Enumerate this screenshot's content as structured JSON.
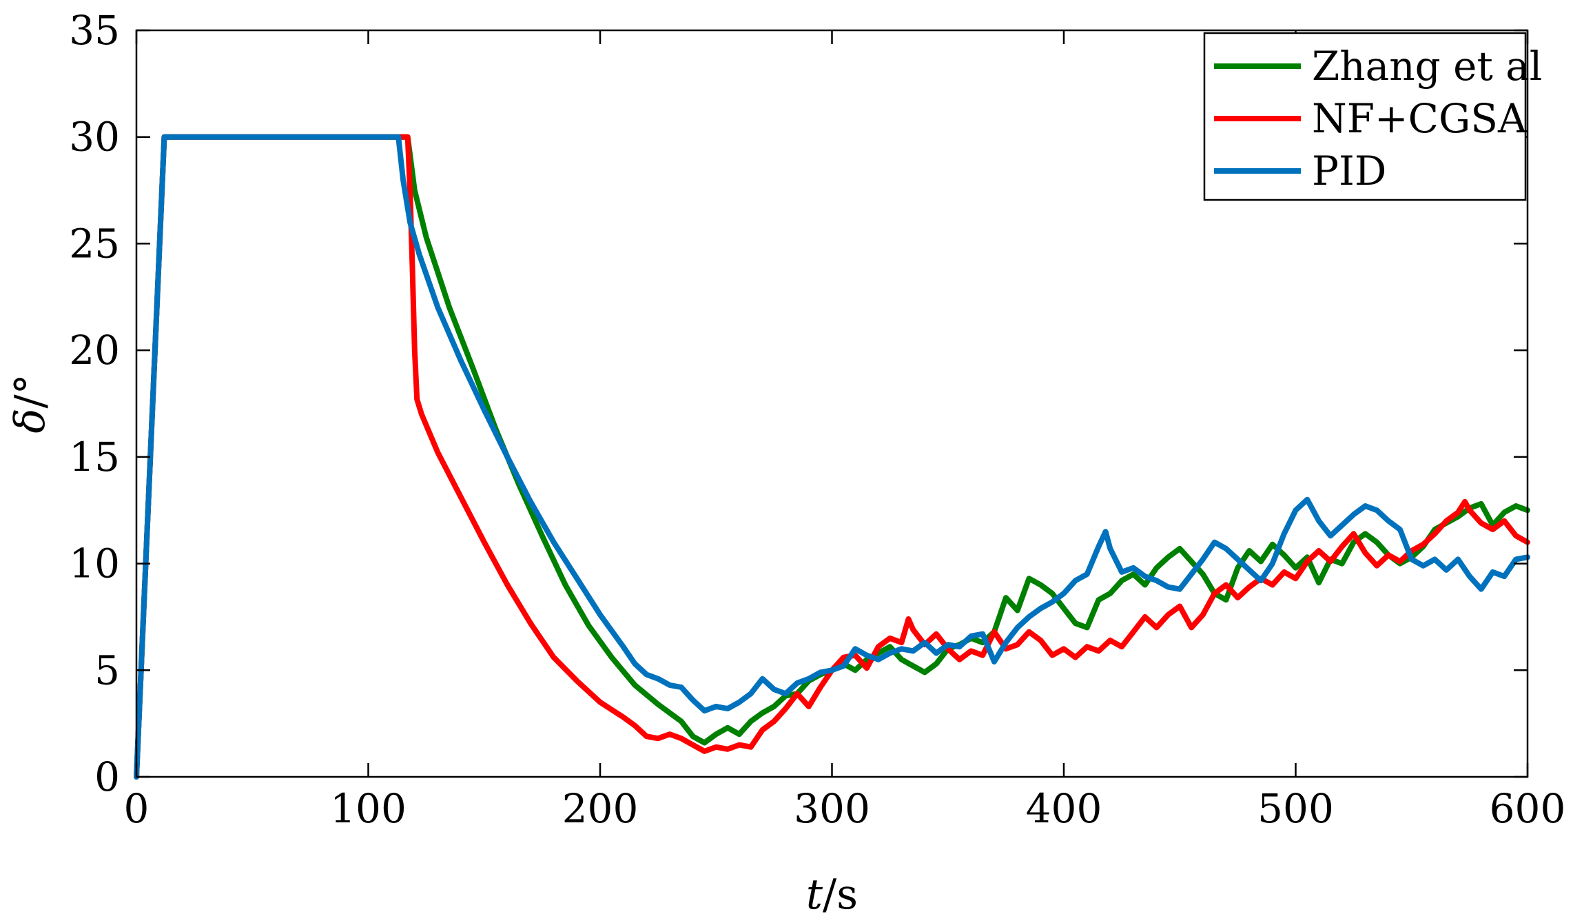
{
  "chart_data": {
    "type": "line",
    "title": "",
    "xlabel_var": "t",
    "xlabel_unit": "/s",
    "ylabel_var": "δ",
    "ylabel_unit": "/°",
    "xlim": [
      0,
      600
    ],
    "ylim": [
      0,
      35
    ],
    "xticks": [
      "0",
      "100",
      "200",
      "300",
      "400",
      "500",
      "600"
    ],
    "yticks": [
      "0",
      "5",
      "10",
      "15",
      "20",
      "25",
      "30",
      "35"
    ],
    "grid": false,
    "legend_position": "top-right",
    "series": [
      {
        "name": "Zhang et al",
        "color": "#008000",
        "points": [
          [
            0,
            0
          ],
          [
            12,
            30
          ],
          [
            117,
            30
          ],
          [
            120,
            27.5
          ],
          [
            125,
            25.3
          ],
          [
            135,
            22
          ],
          [
            145,
            19.2
          ],
          [
            155,
            16.3
          ],
          [
            165,
            13.7
          ],
          [
            175,
            11.3
          ],
          [
            185,
            9.0
          ],
          [
            195,
            7.1
          ],
          [
            205,
            5.6
          ],
          [
            215,
            4.3
          ],
          [
            225,
            3.4
          ],
          [
            235,
            2.6
          ],
          [
            240,
            1.9
          ],
          [
            245,
            1.6
          ],
          [
            250,
            2.0
          ],
          [
            255,
            2.3
          ],
          [
            260,
            2.0
          ],
          [
            265,
            2.6
          ],
          [
            270,
            3.0
          ],
          [
            275,
            3.3
          ],
          [
            280,
            3.8
          ],
          [
            285,
            3.9
          ],
          [
            290,
            4.5
          ],
          [
            295,
            4.8
          ],
          [
            300,
            5.0
          ],
          [
            305,
            5.3
          ],
          [
            310,
            5.0
          ],
          [
            315,
            5.5
          ],
          [
            320,
            5.8
          ],
          [
            325,
            6.1
          ],
          [
            330,
            5.5
          ],
          [
            335,
            5.2
          ],
          [
            340,
            4.9
          ],
          [
            345,
            5.3
          ],
          [
            350,
            6.0
          ],
          [
            355,
            6.2
          ],
          [
            360,
            6.5
          ],
          [
            365,
            6.3
          ],
          [
            370,
            6.8
          ],
          [
            375,
            8.4
          ],
          [
            380,
            7.8
          ],
          [
            385,
            9.3
          ],
          [
            390,
            9.0
          ],
          [
            395,
            8.6
          ],
          [
            400,
            7.9
          ],
          [
            405,
            7.2
          ],
          [
            410,
            7.0
          ],
          [
            415,
            8.3
          ],
          [
            420,
            8.6
          ],
          [
            425,
            9.2
          ],
          [
            430,
            9.5
          ],
          [
            435,
            9.0
          ],
          [
            440,
            9.8
          ],
          [
            445,
            10.3
          ],
          [
            450,
            10.7
          ],
          [
            455,
            10.1
          ],
          [
            460,
            9.5
          ],
          [
            465,
            8.6
          ],
          [
            470,
            8.3
          ],
          [
            475,
            9.8
          ],
          [
            480,
            10.6
          ],
          [
            485,
            10.1
          ],
          [
            490,
            10.9
          ],
          [
            495,
            10.4
          ],
          [
            500,
            9.8
          ],
          [
            505,
            10.3
          ],
          [
            510,
            9.1
          ],
          [
            515,
            10.2
          ],
          [
            520,
            10.0
          ],
          [
            525,
            11.0
          ],
          [
            530,
            11.4
          ],
          [
            535,
            11.0
          ],
          [
            540,
            10.4
          ],
          [
            545,
            10.0
          ],
          [
            550,
            10.3
          ],
          [
            555,
            10.8
          ],
          [
            560,
            11.6
          ],
          [
            565,
            11.9
          ],
          [
            570,
            12.2
          ],
          [
            575,
            12.6
          ],
          [
            580,
            12.8
          ],
          [
            585,
            11.8
          ],
          [
            590,
            12.4
          ],
          [
            595,
            12.7
          ],
          [
            600,
            12.5
          ]
        ]
      },
      {
        "name": "NF+CGSA",
        "color": "#ff0000",
        "points": [
          [
            0,
            0
          ],
          [
            12,
            30
          ],
          [
            117,
            30
          ],
          [
            118,
            27.5
          ],
          [
            119,
            24
          ],
          [
            120,
            20
          ],
          [
            121,
            17.7
          ],
          [
            123,
            17.0
          ],
          [
            130,
            15.2
          ],
          [
            140,
            13.1
          ],
          [
            150,
            11.0
          ],
          [
            160,
            9.0
          ],
          [
            170,
            7.2
          ],
          [
            180,
            5.6
          ],
          [
            190,
            4.5
          ],
          [
            200,
            3.5
          ],
          [
            210,
            2.8
          ],
          [
            215,
            2.4
          ],
          [
            220,
            1.9
          ],
          [
            225,
            1.8
          ],
          [
            230,
            2.0
          ],
          [
            235,
            1.8
          ],
          [
            240,
            1.5
          ],
          [
            245,
            1.2
          ],
          [
            250,
            1.4
          ],
          [
            255,
            1.3
          ],
          [
            260,
            1.5
          ],
          [
            265,
            1.4
          ],
          [
            270,
            2.2
          ],
          [
            275,
            2.6
          ],
          [
            280,
            3.2
          ],
          [
            285,
            3.9
          ],
          [
            290,
            3.3
          ],
          [
            295,
            4.2
          ],
          [
            300,
            5.0
          ],
          [
            305,
            5.6
          ],
          [
            310,
            5.7
          ],
          [
            315,
            5.1
          ],
          [
            320,
            6.1
          ],
          [
            325,
            6.5
          ],
          [
            330,
            6.3
          ],
          [
            333,
            7.4
          ],
          [
            335,
            6.9
          ],
          [
            340,
            6.2
          ],
          [
            345,
            6.7
          ],
          [
            350,
            6.0
          ],
          [
            355,
            5.5
          ],
          [
            360,
            5.9
          ],
          [
            365,
            5.7
          ],
          [
            370,
            6.8
          ],
          [
            375,
            6.0
          ],
          [
            380,
            6.2
          ],
          [
            385,
            6.8
          ],
          [
            390,
            6.4
          ],
          [
            395,
            5.7
          ],
          [
            400,
            6.0
          ],
          [
            405,
            5.6
          ],
          [
            410,
            6.1
          ],
          [
            415,
            5.9
          ],
          [
            420,
            6.4
          ],
          [
            425,
            6.1
          ],
          [
            430,
            6.8
          ],
          [
            435,
            7.5
          ],
          [
            440,
            7.0
          ],
          [
            445,
            7.6
          ],
          [
            450,
            8.0
          ],
          [
            455,
            7.0
          ],
          [
            460,
            7.6
          ],
          [
            465,
            8.6
          ],
          [
            470,
            9.0
          ],
          [
            475,
            8.4
          ],
          [
            480,
            8.9
          ],
          [
            485,
            9.3
          ],
          [
            490,
            9.0
          ],
          [
            495,
            9.6
          ],
          [
            500,
            9.3
          ],
          [
            505,
            10.1
          ],
          [
            510,
            10.6
          ],
          [
            515,
            10.1
          ],
          [
            520,
            10.8
          ],
          [
            525,
            11.4
          ],
          [
            530,
            10.5
          ],
          [
            535,
            9.9
          ],
          [
            540,
            10.4
          ],
          [
            545,
            10.1
          ],
          [
            550,
            10.6
          ],
          [
            555,
            10.9
          ],
          [
            560,
            11.4
          ],
          [
            565,
            12.0
          ],
          [
            570,
            12.4
          ],
          [
            573,
            12.9
          ],
          [
            575,
            12.5
          ],
          [
            580,
            11.9
          ],
          [
            585,
            11.6
          ],
          [
            590,
            12.0
          ],
          [
            595,
            11.3
          ],
          [
            600,
            11.0
          ]
        ]
      },
      {
        "name": "PID",
        "color": "#0072bd",
        "points": [
          [
            0,
            0
          ],
          [
            12,
            30
          ],
          [
            113,
            30
          ],
          [
            115,
            28
          ],
          [
            118,
            26
          ],
          [
            122,
            24.5
          ],
          [
            130,
            22
          ],
          [
            140,
            19.5
          ],
          [
            150,
            17.2
          ],
          [
            160,
            15.0
          ],
          [
            170,
            12.9
          ],
          [
            180,
            11.0
          ],
          [
            190,
            9.3
          ],
          [
            200,
            7.6
          ],
          [
            210,
            6.1
          ],
          [
            215,
            5.3
          ],
          [
            220,
            4.8
          ],
          [
            225,
            4.6
          ],
          [
            230,
            4.3
          ],
          [
            235,
            4.2
          ],
          [
            240,
            3.6
          ],
          [
            245,
            3.1
          ],
          [
            250,
            3.3
          ],
          [
            255,
            3.2
          ],
          [
            260,
            3.5
          ],
          [
            265,
            3.9
          ],
          [
            270,
            4.6
          ],
          [
            275,
            4.1
          ],
          [
            280,
            3.9
          ],
          [
            285,
            4.4
          ],
          [
            290,
            4.6
          ],
          [
            295,
            4.9
          ],
          [
            300,
            5.0
          ],
          [
            305,
            5.2
          ],
          [
            310,
            6.0
          ],
          [
            315,
            5.7
          ],
          [
            320,
            5.5
          ],
          [
            325,
            5.8
          ],
          [
            330,
            6.0
          ],
          [
            335,
            5.9
          ],
          [
            340,
            6.3
          ],
          [
            345,
            5.8
          ],
          [
            350,
            6.2
          ],
          [
            355,
            6.1
          ],
          [
            360,
            6.6
          ],
          [
            365,
            6.7
          ],
          [
            370,
            5.4
          ],
          [
            375,
            6.3
          ],
          [
            380,
            7.0
          ],
          [
            385,
            7.5
          ],
          [
            390,
            7.9
          ],
          [
            395,
            8.2
          ],
          [
            400,
            8.6
          ],
          [
            405,
            9.2
          ],
          [
            410,
            9.5
          ],
          [
            415,
            10.8
          ],
          [
            418,
            11.5
          ],
          [
            420,
            10.7
          ],
          [
            425,
            9.6
          ],
          [
            430,
            9.8
          ],
          [
            435,
            9.4
          ],
          [
            440,
            9.2
          ],
          [
            445,
            8.9
          ],
          [
            450,
            8.8
          ],
          [
            455,
            9.5
          ],
          [
            460,
            10.2
          ],
          [
            465,
            11.0
          ],
          [
            470,
            10.7
          ],
          [
            475,
            10.2
          ],
          [
            480,
            9.7
          ],
          [
            485,
            9.2
          ],
          [
            490,
            10.0
          ],
          [
            495,
            11.4
          ],
          [
            500,
            12.5
          ],
          [
            505,
            13.0
          ],
          [
            510,
            12.0
          ],
          [
            515,
            11.3
          ],
          [
            520,
            11.8
          ],
          [
            525,
            12.3
          ],
          [
            530,
            12.7
          ],
          [
            535,
            12.5
          ],
          [
            540,
            12.0
          ],
          [
            545,
            11.6
          ],
          [
            550,
            10.2
          ],
          [
            555,
            9.9
          ],
          [
            560,
            10.2
          ],
          [
            565,
            9.7
          ],
          [
            570,
            10.2
          ],
          [
            575,
            9.4
          ],
          [
            580,
            8.8
          ],
          [
            585,
            9.6
          ],
          [
            590,
            9.4
          ],
          [
            595,
            10.2
          ],
          [
            600,
            10.3
          ]
        ]
      }
    ]
  }
}
